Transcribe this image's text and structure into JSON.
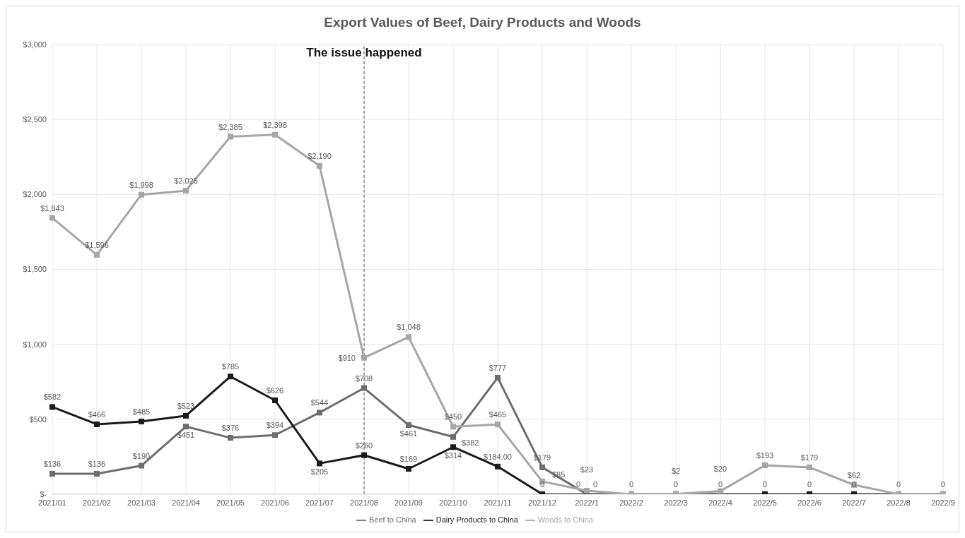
{
  "chart_data": {
    "type": "line",
    "title": "Export Values of Beef, Dairy Products and Woods",
    "categories": [
      "2021/01",
      "2021/02",
      "2021/03",
      "2021/04",
      "2021/05",
      "2021/06",
      "2021/07",
      "2021/08",
      "2021/09",
      "2021/10",
      "2021/11",
      "2021/12",
      "2022/1",
      "2022/2",
      "2022/3",
      "2022/4",
      "2022/5",
      "2022/6",
      "2022/7",
      "2022/8",
      "2022/9"
    ],
    "series": [
      {
        "name": "Beef to China",
        "color": "#6d6d6d",
        "values": [
          136,
          136,
          190,
          451,
          376,
          394,
          544,
          708,
          461,
          382,
          777,
          179,
          0,
          0,
          0,
          0,
          0,
          0,
          0,
          0,
          0
        ],
        "value_labels": [
          "$136",
          "$136",
          "$190",
          "$451",
          "$376",
          "$394",
          "$544",
          "$708",
          "$461",
          "$382",
          "$777",
          "$179",
          "0",
          null,
          null,
          null,
          null,
          null,
          null,
          null,
          null
        ]
      },
      {
        "name": "Dairy Products to China",
        "color": "#1a1a1a",
        "values": [
          582,
          466,
          485,
          523,
          785,
          626,
          205,
          260,
          169,
          314,
          184,
          0,
          0,
          0,
          0,
          0,
          0,
          0,
          0,
          0,
          0
        ],
        "value_labels": [
          "$582",
          "$466",
          "$485",
          "$523",
          "$785",
          "$626",
          "$205",
          "$260",
          "$169",
          "$314",
          "$184.00",
          "0",
          "0",
          "0",
          "0",
          "0",
          "0",
          "0",
          "0",
          "0",
          "0"
        ]
      },
      {
        "name": "Woods to China",
        "color": "#a6a6a6",
        "values": [
          1843,
          1596,
          1998,
          2025,
          2385,
          2398,
          2190,
          910,
          1048,
          450,
          465,
          85,
          23,
          0,
          2,
          20,
          193,
          179,
          62,
          0,
          0
        ],
        "value_labels": [
          "$1,843",
          "$1,596",
          "$1,998",
          "$2,025",
          "$2,385",
          "$2,398",
          "$2,190",
          "$910",
          "$1,048",
          "$450",
          "$465",
          "$85",
          "$23",
          null,
          "$2",
          "$20",
          "$193",
          "$179",
          "$62",
          null,
          null
        ]
      }
    ],
    "ylim": [
      0,
      3000
    ],
    "yticks": [
      {
        "value": 0,
        "label": "$-"
      },
      {
        "value": 500,
        "label": "$500"
      },
      {
        "value": 1000,
        "label": "$1,000"
      },
      {
        "value": 1500,
        "label": "$1,500"
      },
      {
        "value": 2000,
        "label": "$2,000"
      },
      {
        "value": 2500,
        "label": "$2,500"
      },
      {
        "value": 3000,
        "label": "$3,000"
      }
    ],
    "ref_lines": [
      {
        "axis": "x",
        "value": "2021/08",
        "label": "The issue happened",
        "color": "#555555",
        "line_style": "dashed"
      }
    ],
    "grid": true,
    "legend": "bottom",
    "marker": "square",
    "line_style": "solid"
  }
}
